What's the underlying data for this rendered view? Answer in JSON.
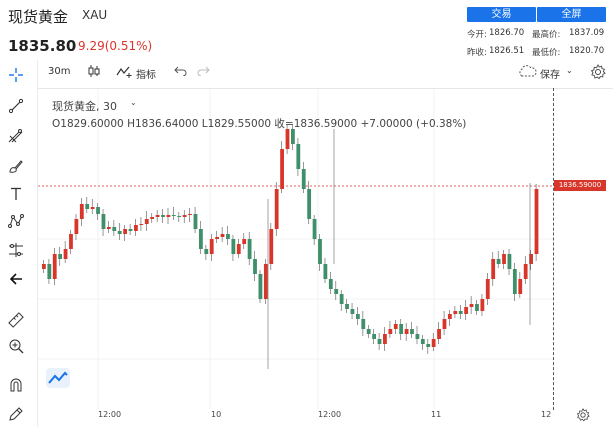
{
  "header": {
    "title": "现货黄金",
    "symbol": "XAU",
    "price": "1835.80",
    "change": "9.29(0.51%)",
    "trade_button": "交易",
    "fullscreen_button": "全屏"
  },
  "quote": {
    "open_label": "今开:",
    "open_value": "1826.70",
    "high_label": "最高价:",
    "high_value": "1837.09",
    "prev_close_label": "昨收:",
    "prev_close_value": "1826.51",
    "low_label": "最低价:",
    "low_value": "1820.70"
  },
  "toolbar": {
    "interval": "30m",
    "indicators": "指标",
    "save": "保存"
  },
  "legend": {
    "name": "现货黄金, 30",
    "ohlc": "O1829.60000   H1836.64000   L1829.55000   收=1836.59000   +7.00000  (+0.38%)"
  },
  "chart_data": {
    "type": "candlestick",
    "x_ticks": [
      "12:00",
      "10",
      "12:00",
      "11",
      "12"
    ],
    "last_price_label": "1836.59000",
    "colors": {
      "up": "#d9362b",
      "down": "#3f8f6a",
      "last_line": "#d9362b"
    }
  },
  "icons": [
    "crosshair-icon",
    "trend-line-icon",
    "fib-icon",
    "brush-icon",
    "text-icon",
    "pattern-icon",
    "measure-icon",
    "back-arrow-icon",
    "ruler-icon",
    "zoom-in-icon",
    "magnet-icon",
    "lock-pencil-icon",
    "logo-icon",
    "settings-icon",
    "cloud-icon"
  ]
}
